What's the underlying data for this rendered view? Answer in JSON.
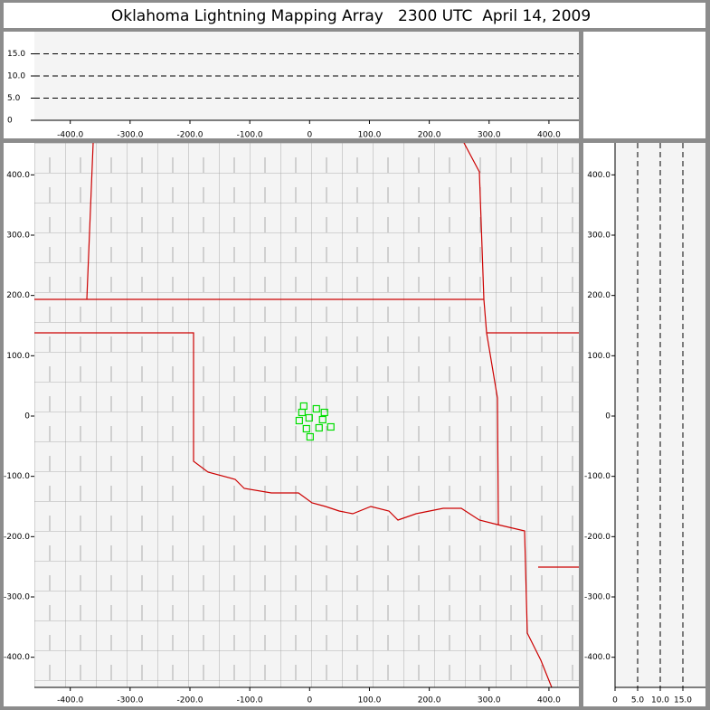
{
  "title": "Oklahoma Lightning Mapping Array   2300 UTC  April 14, 2009",
  "map": {
    "type": "scatter",
    "color": "#00dd00",
    "x": [
      -9.8,
      11.3,
      24.8,
      -12.8,
      -0.8,
      -17.3,
      21.8,
      35.4,
      -5.3,
      15.8,
      0.8
    ],
    "y": [
      16.5,
      12.0,
      6.0,
      6.0,
      -3.0,
      -7.5,
      -6.0,
      -18.0,
      -21.0,
      -19.5,
      -34.5
    ],
    "xlim": [
      -460,
      450
    ],
    "ylim": [
      -450,
      453
    ],
    "xticks": [
      {
        "value": -400,
        "label": "-400.0"
      },
      {
        "value": -300,
        "label": "-300.0"
      },
      {
        "value": -200,
        "label": "-200.0"
      },
      {
        "value": -100,
        "label": "-100.0"
      },
      0,
      {
        "value": 100,
        "label": "100.0"
      },
      {
        "value": 200,
        "label": "200.0"
      },
      {
        "value": 300,
        "label": "300.0"
      },
      {
        "value": 400,
        "label": "400.0"
      }
    ],
    "yticks": [
      {
        "value": -400,
        "label": "-400.0"
      },
      {
        "value": -300,
        "label": "-300.0"
      },
      {
        "value": -200,
        "label": "-200.0"
      },
      {
        "value": -100,
        "label": "-100.0"
      },
      0,
      {
        "value": 100,
        "label": "100.0"
      },
      {
        "value": 200,
        "label": "200.0"
      },
      {
        "value": 300,
        "label": "300.0"
      },
      {
        "value": 400,
        "label": "400.0"
      }
    ]
  },
  "altitude_top": {
    "ylim": [
      0,
      20
    ],
    "yticks": [
      0,
      {
        "value": 5,
        "label": "5.0"
      },
      {
        "value": 10,
        "label": "10.0"
      },
      {
        "value": 15,
        "label": "15.0"
      }
    ],
    "grid": "dashed"
  },
  "altitude_side": {
    "xlim": [
      0,
      20
    ],
    "xticks": [
      0,
      {
        "value": 5,
        "label": "5.0"
      },
      {
        "value": 10,
        "label": "10.0"
      },
      {
        "value": 15,
        "label": "15.0"
      }
    ],
    "grid": "dashed"
  }
}
